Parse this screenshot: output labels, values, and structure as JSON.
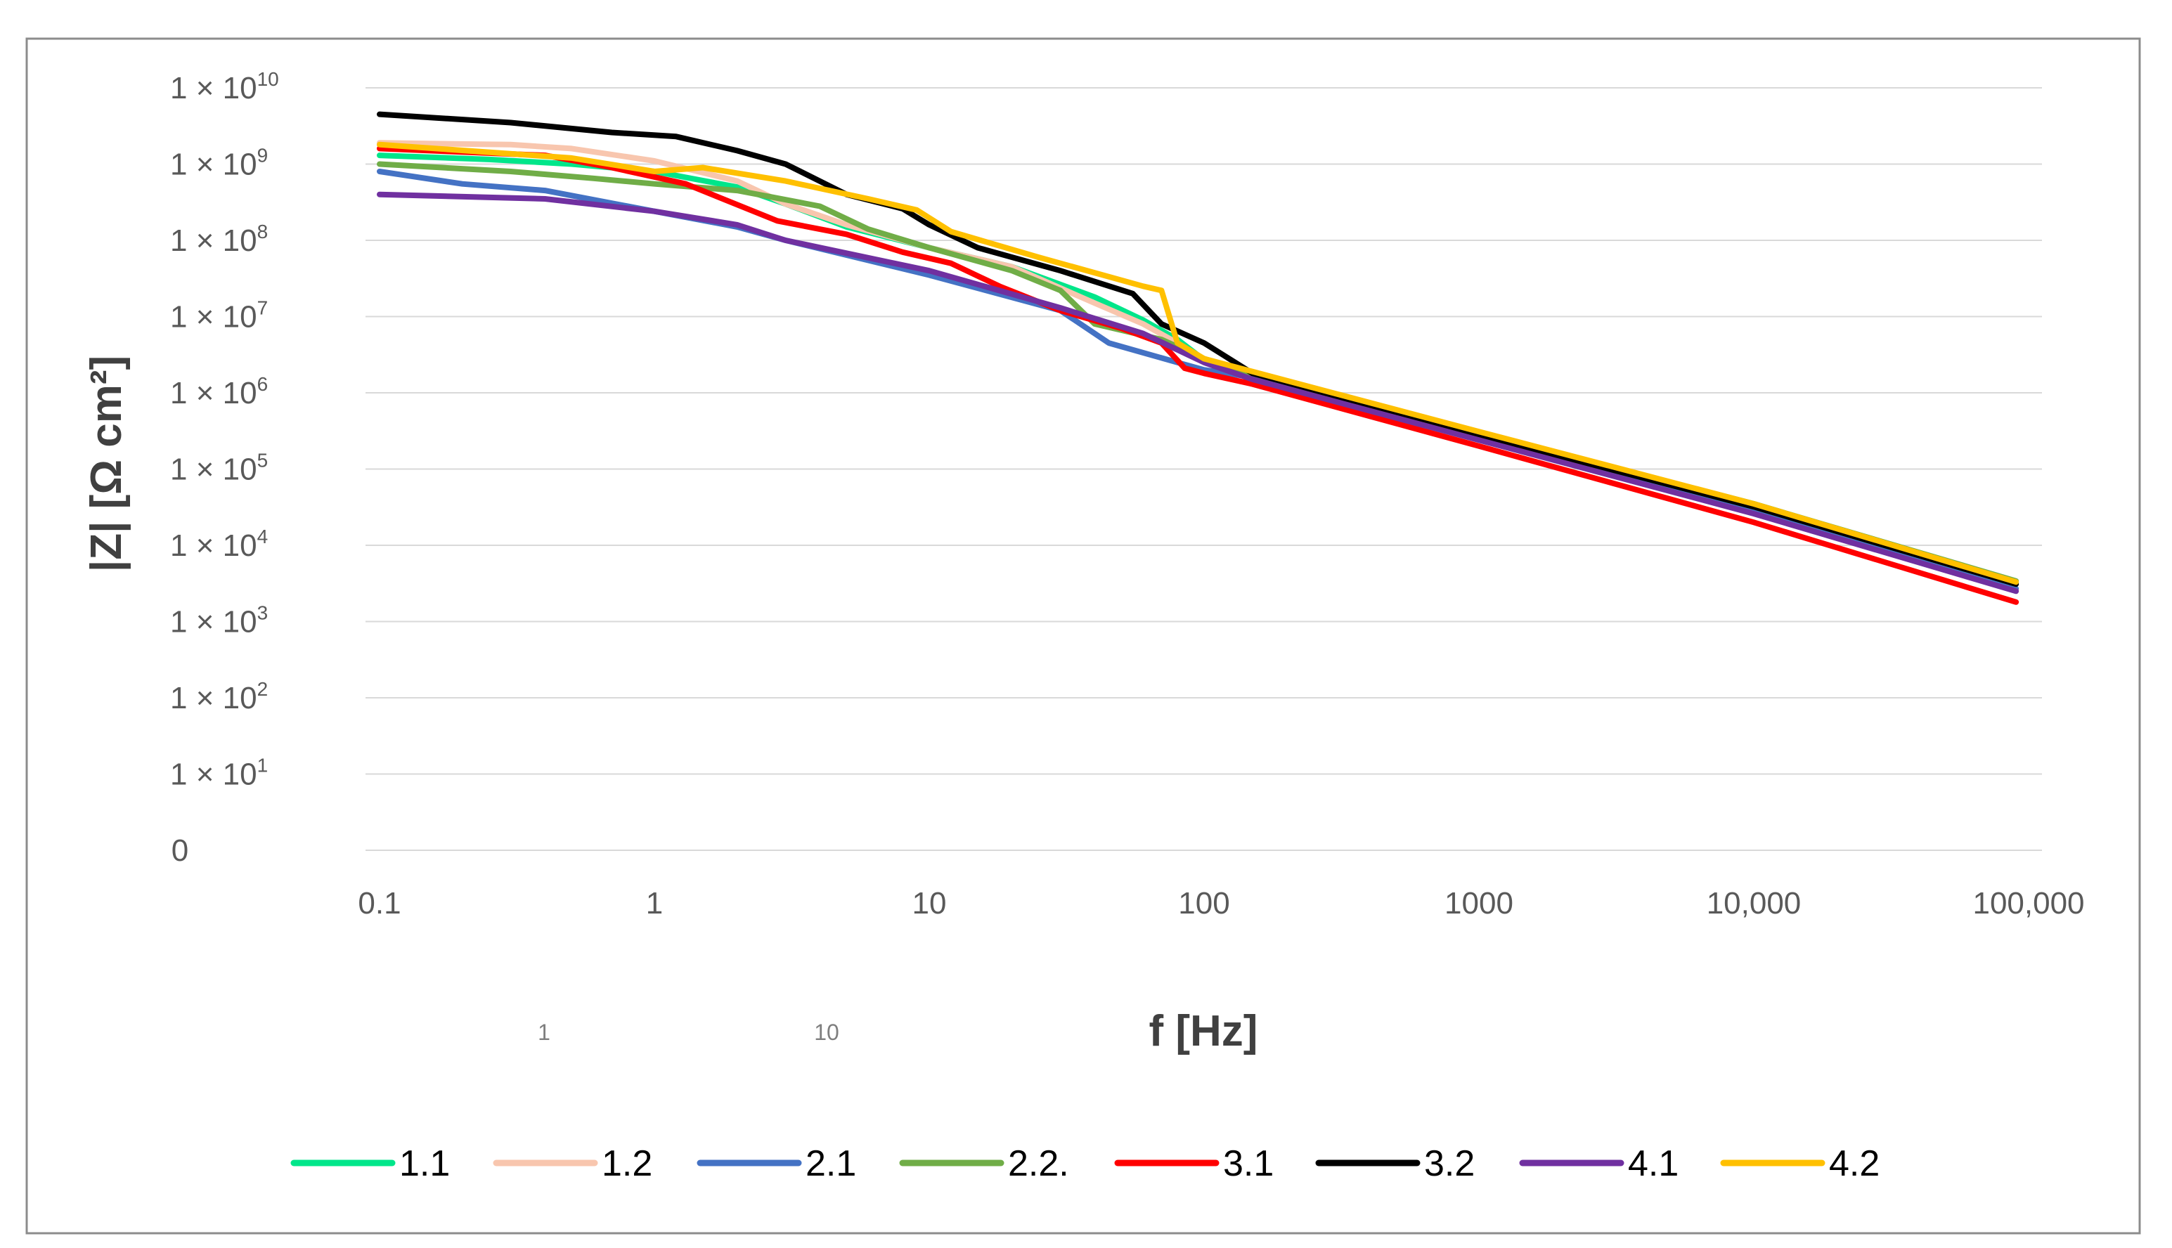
{
  "chart_data": {
    "type": "line",
    "title": "",
    "xlabel": "f [Hz]",
    "ylabel": "|Z| [Ω cm²]",
    "x_scale": "log",
    "y_scale": "log",
    "xlim": [
      0.1,
      100000
    ],
    "ylim_exponents": [
      0,
      10
    ],
    "grid": "horizontal",
    "legend_position": "bottom",
    "x_ticks": [
      {
        "label": "0.1",
        "value": 0.1
      },
      {
        "label": "1",
        "value": 1
      },
      {
        "label": "10",
        "value": 10
      },
      {
        "label": "100",
        "value": 100
      },
      {
        "label": "1000",
        "value": 1000
      },
      {
        "label": "10,000",
        "value": 10000
      },
      {
        "label": "100,000",
        "value": 100000
      }
    ],
    "y_ticks": [
      {
        "label": "0",
        "base": "",
        "exp": ""
      },
      {
        "label": "1 × 10^1",
        "base": "1 × 10",
        "exp": "1"
      },
      {
        "label": "1 × 10^2",
        "base": "1 × 10",
        "exp": "2"
      },
      {
        "label": "1 × 10^3",
        "base": "1 × 10",
        "exp": "3"
      },
      {
        "label": "1 × 10^4",
        "base": "1 × 10",
        "exp": "4"
      },
      {
        "label": "1 × 10^5",
        "base": "1 × 10",
        "exp": "5"
      },
      {
        "label": "1 × 10^6",
        "base": "1 × 10",
        "exp": "6"
      },
      {
        "label": "1 × 10^7",
        "base": "1 × 10",
        "exp": "7"
      },
      {
        "label": "1 × 10^8",
        "base": "1 × 10",
        "exp": "8"
      },
      {
        "label": "1 × 10^9",
        "base": "1 × 10",
        "exp": "9"
      },
      {
        "label": "1 × 10^10",
        "base": "1 × 10",
        "exp": "10"
      }
    ],
    "stray_labels": [
      "1",
      "10"
    ],
    "series": [
      {
        "name": "1.1",
        "color": "#00e68a",
        "points": [
          [
            0.1,
            1300000000.0
          ],
          [
            0.25,
            1150000000.0
          ],
          [
            0.5,
            1000000000.0
          ],
          [
            1,
            800000000.0
          ],
          [
            2,
            500000000.0
          ],
          [
            3,
            300000000.0
          ],
          [
            5,
            150000000.0
          ],
          [
            10,
            80000000.0
          ],
          [
            20,
            45000000.0
          ],
          [
            40,
            18000000.0
          ],
          [
            60,
            9000000.0
          ],
          [
            80,
            5000000.0
          ],
          [
            100,
            2700000.0
          ],
          [
            150,
            1750000.0
          ],
          [
            1000,
            300000.0
          ],
          [
            10000,
            35000.0
          ],
          [
            90000,
            3300.0
          ]
        ]
      },
      {
        "name": "1.2",
        "color": "#f8c6ae",
        "points": [
          [
            0.1,
            1900000000.0
          ],
          [
            0.3,
            1800000000.0
          ],
          [
            0.5,
            1600000000.0
          ],
          [
            1,
            1100000000.0
          ],
          [
            2,
            600000000.0
          ],
          [
            3,
            300000000.0
          ],
          [
            5,
            160000000.0
          ],
          [
            10,
            80000000.0
          ],
          [
            20,
            45000000.0
          ],
          [
            40,
            15000000.0
          ],
          [
            60,
            8000000.0
          ],
          [
            80,
            4500000.0
          ],
          [
            100,
            2600000.0
          ],
          [
            150,
            1700000.0
          ],
          [
            1000,
            280000.0
          ],
          [
            10000,
            32000.0
          ],
          [
            90000,
            3200.0
          ]
        ]
      },
      {
        "name": "2.1",
        "color": "#4472c4",
        "points": [
          [
            0.1,
            800000000.0
          ],
          [
            0.2,
            550000000.0
          ],
          [
            0.4,
            450000000.0
          ],
          [
            1,
            240000000.0
          ],
          [
            2,
            150000000.0
          ],
          [
            3,
            100000000.0
          ],
          [
            10,
            35000000.0
          ],
          [
            30,
            12000000.0
          ],
          [
            45,
            4500000.0
          ],
          [
            80,
            2500000.0
          ],
          [
            100,
            2000000.0
          ],
          [
            150,
            1600000.0
          ],
          [
            1000,
            250000.0
          ],
          [
            10000,
            28000.0
          ],
          [
            90000,
            2700.0
          ]
        ]
      },
      {
        "name": "2.2.",
        "color": "#70ad47",
        "points": [
          [
            0.1,
            1000000000.0
          ],
          [
            0.3,
            800000000.0
          ],
          [
            0.6,
            650000000.0
          ],
          [
            1,
            550000000.0
          ],
          [
            2,
            450000000.0
          ],
          [
            4,
            280000000.0
          ],
          [
            6,
            140000000.0
          ],
          [
            10,
            80000000.0
          ],
          [
            20,
            40000000.0
          ],
          [
            30,
            22000000.0
          ],
          [
            40,
            8000000.0
          ],
          [
            70,
            5000000.0
          ],
          [
            100,
            2800000.0
          ],
          [
            150,
            1800000.0
          ],
          [
            1000,
            300000.0
          ],
          [
            10000,
            35000.0
          ],
          [
            90000,
            3400.0
          ]
        ]
      },
      {
        "name": "3.1",
        "color": "#ff0000",
        "points": [
          [
            0.1,
            1600000000.0
          ],
          [
            0.4,
            1300000000.0
          ],
          [
            0.7,
            900000000.0
          ],
          [
            1.3,
            550000000.0
          ],
          [
            2.8,
            180000000.0
          ],
          [
            5,
            120000000.0
          ],
          [
            8,
            70000000.0
          ],
          [
            12,
            50000000.0
          ],
          [
            18,
            25000000.0
          ],
          [
            30,
            12000000.0
          ],
          [
            50,
            7000000.0
          ],
          [
            70,
            4500000.0
          ],
          [
            85,
            2100000.0
          ],
          [
            100,
            1800000.0
          ],
          [
            150,
            1300000.0
          ],
          [
            1000,
            200000.0
          ],
          [
            10000,
            20000.0
          ],
          [
            90000,
            1800.0
          ]
        ]
      },
      {
        "name": "3.2",
        "color": "#000000",
        "points": [
          [
            0.1,
            4500000000.0
          ],
          [
            0.3,
            3500000000.0
          ],
          [
            0.7,
            2600000000.0
          ],
          [
            1.2,
            2300000000.0
          ],
          [
            2,
            1500000000.0
          ],
          [
            3,
            1000000000.0
          ],
          [
            5,
            400000000.0
          ],
          [
            8,
            260000000.0
          ],
          [
            10,
            160000000.0
          ],
          [
            15,
            80000000.0
          ],
          [
            30,
            40000000.0
          ],
          [
            55,
            20000000.0
          ],
          [
            70,
            8000000.0
          ],
          [
            100,
            4500000.0
          ],
          [
            150,
            1800000.0
          ],
          [
            1000,
            280000.0
          ],
          [
            10000,
            32000.0
          ],
          [
            90000,
            3100.0
          ]
        ]
      },
      {
        "name": "4.1",
        "color": "#7030a0",
        "points": [
          [
            0.1,
            400000000.0
          ],
          [
            0.4,
            350000000.0
          ],
          [
            1,
            240000000.0
          ],
          [
            2,
            160000000.0
          ],
          [
            3,
            100000000.0
          ],
          [
            10,
            40000000.0
          ],
          [
            30,
            13000000.0
          ],
          [
            60,
            6000000.0
          ],
          [
            100,
            2500000.0
          ],
          [
            150,
            1500000.0
          ],
          [
            1000,
            240000.0
          ],
          [
            10000,
            26000.0
          ],
          [
            90000,
            2500.0
          ]
        ]
      },
      {
        "name": "4.2",
        "color": "#ffc000",
        "points": [
          [
            0.1,
            1800000000.0
          ],
          [
            0.5,
            1200000000.0
          ],
          [
            1,
            800000000.0
          ],
          [
            1.5,
            900000000.0
          ],
          [
            3,
            600000000.0
          ],
          [
            6,
            350000000.0
          ],
          [
            9,
            250000000.0
          ],
          [
            12,
            130000000.0
          ],
          [
            25,
            60000000.0
          ],
          [
            60,
            25000000.0
          ],
          [
            70,
            22000000.0
          ],
          [
            80,
            4500000.0
          ],
          [
            100,
            2800000.0
          ],
          [
            150,
            1900000.0
          ],
          [
            1000,
            310000.0
          ],
          [
            10000,
            35000.0
          ],
          [
            90000,
            3300.0
          ]
        ]
      }
    ]
  }
}
